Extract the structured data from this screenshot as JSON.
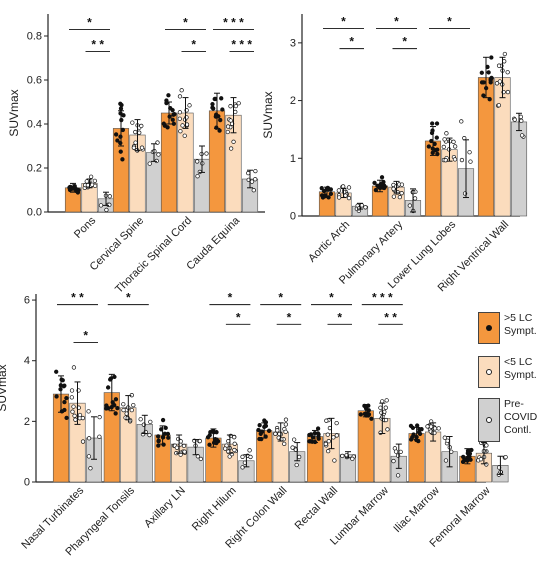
{
  "legend": {
    "groups": [
      {
        "label": ">5 LC\nSympt.",
        "color": "#f4973e",
        "marker": "filled"
      },
      {
        "label": "<5 LC\nSympt.",
        "color": "#fbdcbd",
        "marker": "open"
      },
      {
        "label": "Pre-\nCOVID\nContl.",
        "color": "#d0d0d0",
        "marker": "open"
      }
    ]
  },
  "chart_data": [
    {
      "type": "bar",
      "ylabel": "SUVmax",
      "ylim": [
        0,
        0.9
      ],
      "yticks": [
        "0.0",
        "0.2",
        "0.4",
        "0.6",
        "0.8"
      ],
      "categories": [
        "Pons",
        "Cervical Spine",
        "Thoracic Spinal Cord",
        "Cauda Equina"
      ],
      "series": [
        {
          "name": ">5 LC Sympt.",
          "values": [
            0.11,
            0.38,
            0.45,
            0.46
          ],
          "errors": [
            0.02,
            0.08,
            0.05,
            0.08
          ]
        },
        {
          "name": "<5 LC Sympt.",
          "values": [
            0.13,
            0.35,
            0.45,
            0.44
          ],
          "errors": [
            0.02,
            0.07,
            0.07,
            0.08
          ]
        },
        {
          "name": "Pre-COVID Contl.",
          "values": [
            0.06,
            0.27,
            0.24,
            0.15
          ],
          "errors": [
            0.03,
            0.04,
            0.06,
            0.04
          ]
        }
      ],
      "significance": [
        {
          "category": 0,
          "from": 0,
          "to": 2,
          "label": "*",
          "y": 0.83
        },
        {
          "category": 0,
          "from": 1,
          "to": 2,
          "label": "* *",
          "y": 0.73
        },
        {
          "category": 2,
          "from": 0,
          "to": 2,
          "label": "*",
          "y": 0.83
        },
        {
          "category": 2,
          "from": 1,
          "to": 2,
          "label": "*",
          "y": 0.73
        },
        {
          "category": 3,
          "from": 0,
          "to": 2,
          "label": "* * *",
          "y": 0.83
        },
        {
          "category": 3,
          "from": 1,
          "to": 2,
          "label": "* * *",
          "y": 0.73
        }
      ]
    },
    {
      "type": "bar",
      "ylabel": "SUVmax",
      "ylim": [
        0,
        3.5
      ],
      "yticks": [
        "0",
        "1",
        "2",
        "3"
      ],
      "categories": [
        "Aortic Arch",
        "Pulmonary Artery",
        "Lower Lung Lobes",
        "Right Ventrical Wall"
      ],
      "series": [
        {
          "name": ">5 LC Sympt.",
          "values": [
            0.42,
            0.52,
            1.3,
            2.4
          ],
          "errors": [
            0.08,
            0.1,
            0.25,
            0.35
          ]
        },
        {
          "name": "<5 LC Sympt.",
          "values": [
            0.4,
            0.5,
            1.15,
            2.4
          ],
          "errors": [
            0.08,
            0.1,
            0.2,
            0.35
          ]
        },
        {
          "name": "Pre-COVID Contl.",
          "values": [
            0.17,
            0.27,
            0.82,
            1.63
          ],
          "errors": [
            0.05,
            0.2,
            0.5,
            0.15
          ]
        }
      ],
      "significance": [
        {
          "category": 0,
          "from": 0,
          "to": 2,
          "label": "*",
          "y": 3.25
        },
        {
          "category": 0,
          "from": 1,
          "to": 2,
          "label": "*",
          "y": 2.9
        },
        {
          "category": 1,
          "from": 0,
          "to": 2,
          "label": "*",
          "y": 3.25
        },
        {
          "category": 1,
          "from": 1,
          "to": 2,
          "label": "*",
          "y": 2.9
        },
        {
          "category": 2,
          "from": 0,
          "to": 2,
          "label": "*",
          "y": 3.25
        }
      ]
    },
    {
      "type": "bar",
      "ylabel": "SUVmax",
      "ylim": [
        0,
        6.2
      ],
      "yticks": [
        "0",
        "2",
        "4",
        "6"
      ],
      "categories": [
        "Nasal Turbinates",
        "Pharyngeal Tonsils",
        "Axillary LN",
        "Right Hilum",
        "Right Colon Wall",
        "Rectal Wall",
        "Lumbar Marrow",
        "Iliac Marrow",
        "Femoral Marrow"
      ],
      "series": [
        {
          "name": ">5 LC Sympt.",
          "values": [
            2.9,
            2.95,
            1.55,
            1.45,
            1.7,
            1.5,
            2.35,
            1.6,
            0.85
          ],
          "errors": [
            0.6,
            0.6,
            0.3,
            0.3,
            0.25,
            0.2,
            0.2,
            0.2,
            0.25
          ]
        },
        {
          "name": "<5 LC Sympt.",
          "values": [
            2.6,
            2.45,
            1.25,
            1.25,
            1.65,
            1.6,
            2.1,
            1.65,
            0.95
          ],
          "errors": [
            0.7,
            0.4,
            0.3,
            0.3,
            0.3,
            0.5,
            0.5,
            0.3,
            0.35
          ]
        },
        {
          "name": "Pre-COVID Contl.",
          "values": [
            1.45,
            1.9,
            1.15,
            0.7,
            1.0,
            0.9,
            0.85,
            1.0,
            0.55
          ],
          "errors": [
            0.7,
            0.3,
            0.25,
            0.2,
            0.3,
            0.1,
            0.4,
            0.5,
            0.3
          ]
        }
      ],
      "significance": [
        {
          "category": 0,
          "from": 0,
          "to": 2,
          "label": "* *",
          "y": 5.85
        },
        {
          "category": 0,
          "from": 1,
          "to": 2,
          "label": "*",
          "y": 4.6
        },
        {
          "category": 1,
          "from": 0,
          "to": 2,
          "label": "*",
          "y": 5.85
        },
        {
          "category": 3,
          "from": 0,
          "to": 2,
          "label": "*",
          "y": 5.85
        },
        {
          "category": 3,
          "from": 1,
          "to": 2,
          "label": "*",
          "y": 5.2
        },
        {
          "category": 4,
          "from": 0,
          "to": 2,
          "label": "*",
          "y": 5.85
        },
        {
          "category": 4,
          "from": 1,
          "to": 2,
          "label": "*",
          "y": 5.2
        },
        {
          "category": 5,
          "from": 0,
          "to": 2,
          "label": "*",
          "y": 5.85
        },
        {
          "category": 5,
          "from": 1,
          "to": 2,
          "label": "*",
          "y": 5.2
        },
        {
          "category": 6,
          "from": 0,
          "to": 2,
          "label": "* * *",
          "y": 5.85
        },
        {
          "category": 6,
          "from": 1,
          "to": 2,
          "label": "* *",
          "y": 5.2
        }
      ]
    }
  ]
}
